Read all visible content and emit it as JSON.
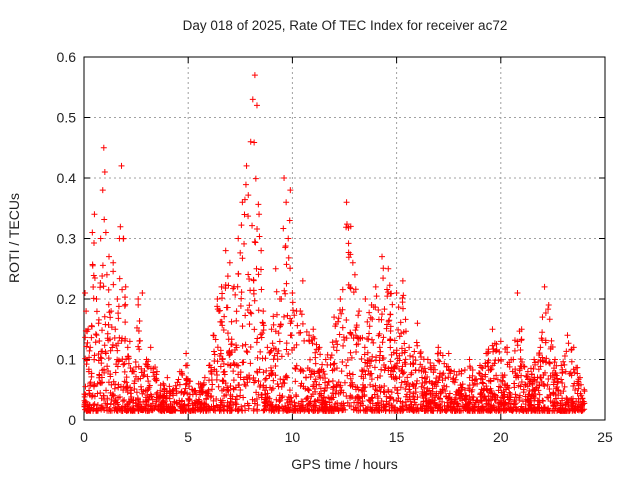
{
  "chart_data": {
    "type": "scatter",
    "title": "Day 018 of 2025, Rate Of TEC Index for receiver ac72",
    "xlabel": "GPS time / hours",
    "ylabel": "ROTI / TECUs",
    "xlim": [
      0,
      25
    ],
    "ylim": [
      0,
      0.6
    ],
    "xticks": [
      "0",
      "5",
      "10",
      "15",
      "20",
      "25"
    ],
    "yticks": [
      "0",
      "0.1",
      "0.2",
      "0.3",
      "0.4",
      "0.5",
      "0.6"
    ],
    "grid": true,
    "marker": "+",
    "color": "#ff0000",
    "series": [
      {
        "x": [
          0.05,
          0.1,
          0.2,
          0.3,
          0.4,
          0.5,
          0.6,
          0.7,
          0.8,
          0.9,
          0.95,
          1.0,
          1.05,
          1.1,
          1.2,
          1.3,
          1.4,
          1.5,
          1.6,
          1.7,
          1.8,
          1.9,
          2.0,
          2.1,
          2.2,
          2.4,
          2.6,
          2.8,
          3.0,
          3.2,
          3.5,
          3.8,
          4.0,
          4.3,
          4.6,
          4.9,
          5.2,
          5.5,
          5.8,
          6.0,
          6.2,
          6.4,
          6.6,
          6.8,
          7.0,
          7.2,
          7.4,
          7.6,
          7.8,
          8.0,
          8.1,
          8.2,
          8.3,
          8.4,
          8.5,
          8.6,
          8.8,
          9.0,
          9.2,
          9.4,
          9.6,
          9.7,
          9.8,
          9.9,
          10.0,
          10.2,
          10.5,
          10.8,
          11.0,
          11.3,
          11.6,
          12.0,
          12.3,
          12.6,
          12.8,
          12.9,
          13.0,
          13.2,
          13.5,
          13.8,
          14.0,
          14.3,
          14.6,
          15.0,
          15.3,
          15.6,
          16.0,
          16.5,
          17.0,
          17.5,
          18.0,
          18.5,
          19.0,
          19.3,
          19.6,
          20.0,
          20.3,
          20.6,
          20.8,
          21.0,
          21.3,
          21.6,
          21.9,
          22.0,
          22.1,
          22.3,
          22.6,
          22.9,
          23.2,
          23.5,
          23.8,
          24.0
        ],
        "y": [
          0.21,
          0.18,
          0.15,
          0.12,
          0.31,
          0.34,
          0.2,
          0.16,
          0.3,
          0.38,
          0.45,
          0.41,
          0.31,
          0.24,
          0.27,
          0.18,
          0.26,
          0.15,
          0.2,
          0.3,
          0.42,
          0.3,
          0.22,
          0.12,
          0.13,
          0.08,
          0.2,
          0.21,
          0.1,
          0.12,
          0.08,
          0.06,
          0.07,
          0.05,
          0.08,
          0.11,
          0.05,
          0.06,
          0.07,
          0.09,
          0.14,
          0.2,
          0.22,
          0.28,
          0.26,
          0.22,
          0.3,
          0.36,
          0.42,
          0.46,
          0.53,
          0.57,
          0.52,
          0.34,
          0.28,
          0.18,
          0.12,
          0.15,
          0.25,
          0.2,
          0.4,
          0.36,
          0.3,
          0.38,
          0.21,
          0.18,
          0.23,
          0.14,
          0.15,
          0.12,
          0.1,
          0.17,
          0.2,
          0.36,
          0.32,
          0.26,
          0.24,
          0.18,
          0.2,
          0.19,
          0.22,
          0.27,
          0.25,
          0.21,
          0.23,
          0.12,
          0.16,
          0.1,
          0.12,
          0.11,
          0.08,
          0.1,
          0.09,
          0.11,
          0.15,
          0.13,
          0.12,
          0.1,
          0.21,
          0.15,
          0.08,
          0.1,
          0.12,
          0.17,
          0.22,
          0.19,
          0.1,
          0.09,
          0.14,
          0.12,
          0.07,
          0.05
        ],
        "noise_floor": [
          0.03,
          0.1
        ]
      }
    ]
  }
}
